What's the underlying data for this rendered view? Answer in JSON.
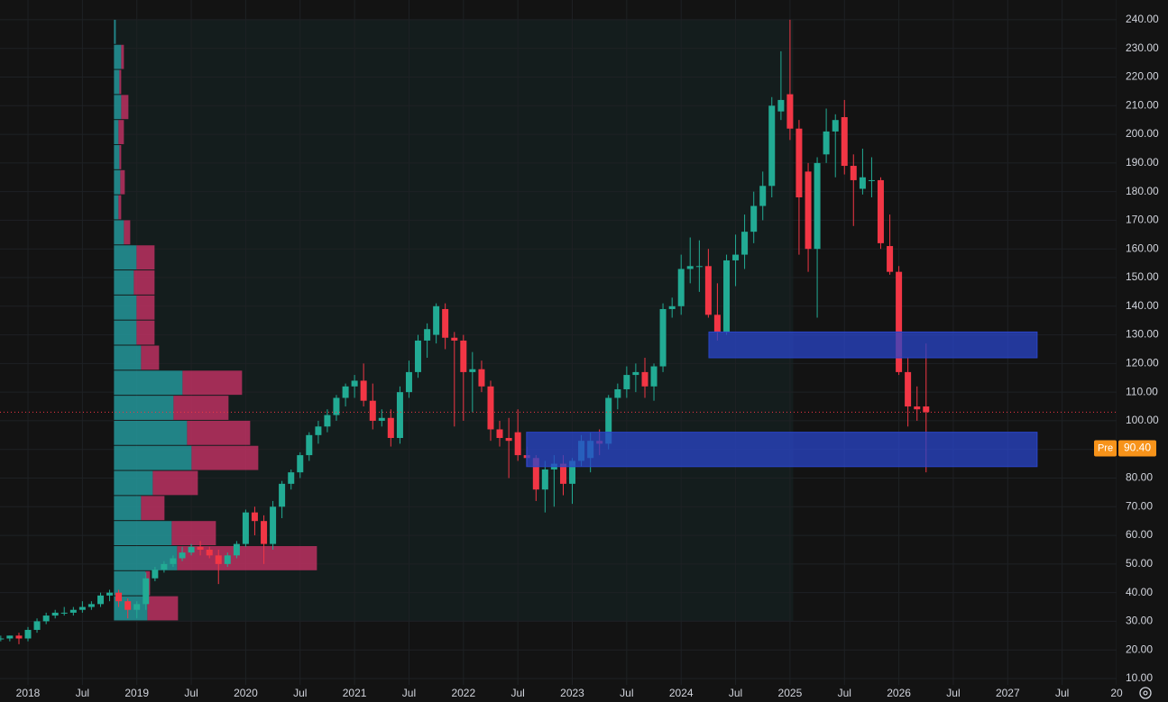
{
  "chart_data": {
    "type": "candlestick",
    "x": [
      2017.75,
      2017.833,
      2017.917,
      2018,
      2018.083,
      2018.167,
      2018.25,
      2018.333,
      2018.417,
      2018.5,
      2018.583,
      2018.667,
      2018.75,
      2018.833,
      2018.917,
      2019,
      2019.083,
      2019.167,
      2019.25,
      2019.333,
      2019.417,
      2019.5,
      2019.583,
      2019.667,
      2019.75,
      2019.833,
      2019.917,
      2020,
      2020.083,
      2020.167,
      2020.25,
      2020.333,
      2020.417,
      2020.5,
      2020.583,
      2020.667,
      2020.75,
      2020.833,
      2020.917,
      2021,
      2021.083,
      2021.167,
      2021.25,
      2021.333,
      2021.417,
      2021.5,
      2021.583,
      2021.667,
      2021.75,
      2021.833,
      2021.917,
      2022,
      2022.083,
      2022.167,
      2022.25,
      2022.333,
      2022.417,
      2022.5,
      2022.583,
      2022.667,
      2022.75,
      2022.833,
      2022.917,
      2023,
      2023.083,
      2023.167,
      2023.25,
      2023.333,
      2023.417,
      2023.5,
      2023.583,
      2023.667,
      2023.75,
      2023.833,
      2023.917,
      2024,
      2024.083,
      2024.167,
      2024.25,
      2024.333,
      2024.417,
      2024.5,
      2024.583,
      2024.667,
      2024.75,
      2024.833,
      2024.917,
      2025,
      2025.083,
      2025.167,
      2025.25,
      2025.333,
      2025.417,
      2025.5,
      2025.583,
      2025.667,
      2025.75,
      2025.833,
      2025.917,
      2026,
      2026.083,
      2026.167,
      2026.25
    ],
    "open": [
      24,
      24,
      25,
      24,
      27,
      30,
      32,
      33,
      33,
      34,
      35,
      36,
      39,
      40,
      37,
      34,
      36,
      45,
      48,
      50,
      52,
      54,
      56,
      55,
      53,
      50,
      53,
      57,
      68,
      65,
      57,
      70,
      78,
      82,
      88,
      95,
      98,
      102,
      108,
      112,
      114,
      107,
      100,
      101,
      94,
      110,
      117,
      128,
      130,
      139,
      129,
      128,
      117,
      118,
      112,
      97,
      94,
      96,
      88,
      87,
      76,
      83,
      85,
      78,
      86,
      87,
      93,
      92,
      108,
      111,
      116,
      117,
      112,
      119,
      139,
      140,
      153,
      154,
      154,
      137,
      131,
      156,
      158,
      166,
      175,
      182,
      208,
      214,
      202,
      187,
      160,
      193,
      201,
      206,
      189,
      181,
      184,
      184,
      161,
      152,
      117,
      105,
      105
    ],
    "high": [
      25,
      25,
      26,
      28,
      31,
      33,
      34,
      35,
      35,
      37,
      37,
      40,
      41,
      41,
      38,
      37,
      47,
      49,
      51,
      53,
      56,
      57,
      58,
      56,
      55,
      54,
      58,
      69,
      70,
      67,
      72,
      79,
      83,
      89,
      96,
      100,
      104,
      109,
      113,
      116,
      120,
      113,
      104,
      104,
      112,
      121,
      130,
      134,
      141,
      141,
      131,
      130,
      124,
      121,
      114,
      100,
      101,
      104,
      91,
      88,
      86,
      88,
      88,
      87,
      95,
      96,
      97,
      109,
      113,
      119,
      120,
      122,
      120,
      141,
      143,
      158,
      164,
      163,
      160,
      148,
      158,
      165,
      172,
      180,
      187,
      213,
      229,
      240,
      205,
      190,
      192,
      209,
      207,
      212,
      193,
      195,
      192,
      185,
      172,
      154,
      122,
      112,
      127
    ],
    "low": [
      23,
      23,
      22,
      23,
      26,
      29,
      31,
      32,
      32,
      33,
      34,
      35,
      37,
      35,
      31,
      31,
      34,
      44,
      47,
      49,
      51,
      53,
      53,
      52,
      43,
      49,
      52,
      56,
      60,
      50,
      55,
      66,
      76,
      80,
      86,
      92,
      96,
      100,
      105,
      108,
      105,
      97,
      98,
      91,
      92,
      108,
      115,
      122,
      127,
      125,
      98,
      100,
      103,
      110,
      93,
      91,
      80,
      86,
      84,
      72,
      68,
      70,
      74,
      71,
      84,
      82,
      88,
      90,
      104,
      108,
      110,
      108,
      107,
      117,
      136,
      137,
      148,
      145,
      136,
      128,
      130,
      147,
      153,
      162,
      170,
      178,
      205,
      198,
      158,
      152,
      136,
      190,
      185,
      186,
      168,
      179,
      178,
      160,
      151,
      116,
      98,
      100,
      82
    ],
    "close": [
      24,
      25,
      24,
      27,
      30,
      32,
      33,
      33,
      34,
      35,
      36,
      39,
      40,
      37,
      34,
      36,
      45,
      48,
      50,
      52,
      54,
      56,
      55,
      53,
      50,
      53,
      57,
      68,
      65,
      57,
      70,
      78,
      82,
      88,
      95,
      98,
      102,
      108,
      112,
      114,
      107,
      100,
      101,
      94,
      110,
      117,
      128,
      132,
      140,
      129,
      128,
      117,
      118,
      112,
      97,
      94,
      93,
      88,
      87,
      76,
      83,
      85,
      78,
      86,
      93,
      93,
      92,
      108,
      111,
      116,
      117,
      112,
      119,
      139,
      140,
      153,
      154,
      154,
      137,
      131,
      156,
      158,
      166,
      175,
      182,
      210,
      212,
      202,
      178,
      160,
      190,
      201,
      205,
      189,
      184,
      185,
      184,
      162,
      152,
      117,
      105,
      104,
      103
    ],
    "up_color": "#22ab94",
    "down_color": "#f23645",
    "xlim": [
      2017.743,
      2028
    ],
    "xticks": [
      2018,
      {
        "value": 2018.5,
        "label": "Jul"
      },
      2019,
      {
        "value": 2019.5,
        "label": "Jul"
      },
      2020,
      {
        "value": 2020.5,
        "label": "Jul"
      },
      2021,
      {
        "value": 2021.5,
        "label": "Jul"
      },
      2022,
      {
        "value": 2022.5,
        "label": "Jul"
      },
      2023,
      {
        "value": 2023.5,
        "label": "Jul"
      },
      2024,
      {
        "value": 2024.5,
        "label": "Jul"
      },
      2025,
      {
        "value": 2025.5,
        "label": "Jul"
      },
      2026,
      {
        "value": 2026.5,
        "label": "Jul"
      },
      2027,
      {
        "value": 2027.5,
        "label": "Jul"
      },
      {
        "value": 2028,
        "label": "20"
      }
    ],
    "ylim": [
      7.8,
      246.9
    ],
    "yticks": [
      {
        "value": 10,
        "label": "10.00"
      },
      {
        "value": 20,
        "label": "20.00"
      },
      {
        "value": 30,
        "label": "30.00"
      },
      {
        "value": 40,
        "label": "40.00"
      },
      {
        "value": 50,
        "label": "50.00"
      },
      {
        "value": 60,
        "label": "60.00"
      },
      {
        "value": 70,
        "label": "70.00"
      },
      {
        "value": 80,
        "label": "80.00"
      },
      {
        "value": 90,
        "label": "90.00"
      },
      {
        "value": 100,
        "label": "100.00"
      },
      {
        "value": 110,
        "label": "110.00"
      },
      {
        "value": 120,
        "label": "120.00"
      },
      {
        "value": 130,
        "label": "130.00"
      },
      {
        "value": 140,
        "label": "140.00"
      },
      {
        "value": 150,
        "label": "150.00"
      },
      {
        "value": 160,
        "label": "160.00"
      },
      {
        "value": 170,
        "label": "170.00"
      },
      {
        "value": 180,
        "label": "180.00"
      },
      {
        "value": 190,
        "label": "190.00"
      },
      {
        "value": 200,
        "label": "200.00"
      },
      {
        "value": 210,
        "label": "210.00"
      },
      {
        "value": 220,
        "label": "220.00"
      },
      {
        "value": 230,
        "label": "230.00"
      },
      {
        "value": 240,
        "label": "240.00"
      }
    ],
    "grid": true,
    "volume_profile": {
      "x": [
        2018.79,
        2025.03
      ],
      "price_range": [
        30,
        240
      ],
      "up": [
        2,
        8,
        6,
        8,
        5,
        6,
        7,
        5,
        11,
        25,
        22,
        25,
        25,
        30,
        76,
        66,
        81,
        86,
        43,
        30,
        64,
        70,
        35,
        37
      ],
      "down": [
        0,
        3,
        2,
        8,
        6,
        2,
        5,
        3,
        7,
        20,
        23,
        20,
        20,
        20,
        66,
        61,
        70,
        74,
        50,
        26,
        49,
        155,
        5,
        34
      ],
      "up_color": "#26a6aa",
      "down_color": "#d2336a"
    },
    "zones": [
      {
        "x": [
          2024.255,
          2027.27
        ],
        "y": [
          122,
          131
        ]
      },
      {
        "x": [
          2022.58,
          2027.27
        ],
        "y": [
          84,
          96
        ]
      }
    ],
    "zone_color": "#2a45c9",
    "last_price_line": 103,
    "price_label": {
      "tag": "Pre",
      "value": 90.4,
      "label": "90.40",
      "color": "#f7931a"
    }
  }
}
